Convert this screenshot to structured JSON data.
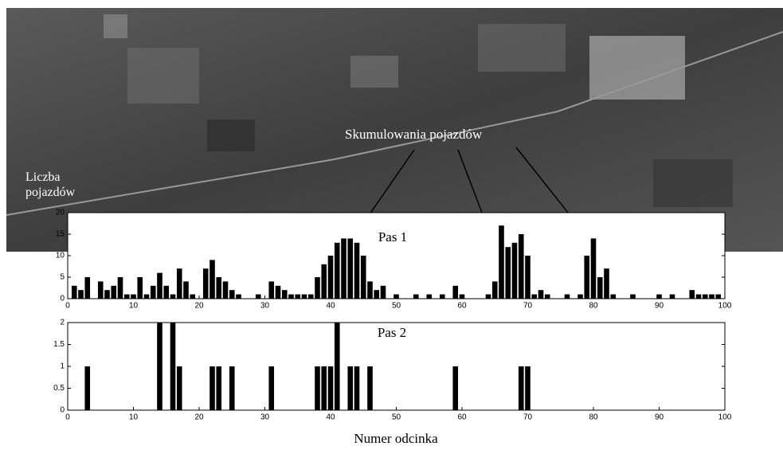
{
  "chart_data": [
    {
      "type": "bar",
      "title": "Pas 1",
      "ylabel": "Liczba pojazdów",
      "annotations": [
        "Skumulowania pojazdów"
      ],
      "color": "#000000",
      "x": [
        1,
        2,
        3,
        5,
        6,
        7,
        8,
        9,
        10,
        11,
        12,
        13,
        14,
        15,
        16,
        17,
        18,
        19,
        21,
        22,
        23,
        24,
        25,
        26,
        29,
        31,
        32,
        33,
        34,
        35,
        36,
        37,
        38,
        39,
        40,
        41,
        42,
        43,
        44,
        45,
        46,
        47,
        48,
        50,
        53,
        55,
        57,
        59,
        60,
        64,
        65,
        66,
        67,
        68,
        69,
        70,
        71,
        72,
        73,
        76,
        78,
        79,
        80,
        81,
        82,
        83,
        86,
        90,
        92,
        95,
        96,
        97,
        98,
        99
      ],
      "values": [
        3,
        2,
        5,
        4,
        2,
        3,
        5,
        1,
        1,
        5,
        1,
        3,
        6,
        3,
        1,
        7,
        4,
        1,
        7,
        9,
        5,
        4,
        2,
        1,
        1,
        4,
        3,
        2,
        1,
        1,
        1,
        1,
        5,
        8,
        10,
        13,
        14,
        14,
        13,
        10,
        4,
        2,
        3,
        1,
        1,
        1,
        1,
        3,
        1,
        1,
        4,
        17,
        12,
        13,
        15,
        10,
        1,
        2,
        1,
        1,
        1,
        10,
        14,
        5,
        7,
        1,
        1,
        1,
        1,
        2,
        1,
        1,
        1,
        1
      ],
      "xlim": [
        0,
        100
      ],
      "xticks": [
        0,
        10,
        20,
        30,
        40,
        50,
        60,
        70,
        80,
        90,
        100
      ],
      "ylim": [
        0,
        20
      ],
      "yticks": [
        0,
        5,
        10,
        15,
        20
      ]
    },
    {
      "type": "bar",
      "title": "Pas 2",
      "xlabel": "Numer odcinka",
      "color": "#000000",
      "x": [
        3,
        14,
        16,
        17,
        22,
        23,
        25,
        31,
        38,
        39,
        40,
        41,
        43,
        44,
        46,
        59,
        69,
        70
      ],
      "values": [
        1,
        2,
        2,
        1,
        1,
        1,
        1,
        1,
        1,
        1,
        1,
        2,
        1,
        1,
        1,
        1,
        1,
        1
      ],
      "xlim": [
        0,
        100
      ],
      "xticks": [
        0,
        10,
        20,
        30,
        40,
        50,
        60,
        70,
        80,
        90,
        100
      ],
      "ylim": [
        0,
        2
      ],
      "yticks": [
        0,
        0.5,
        1,
        1.5,
        2
      ]
    }
  ]
}
